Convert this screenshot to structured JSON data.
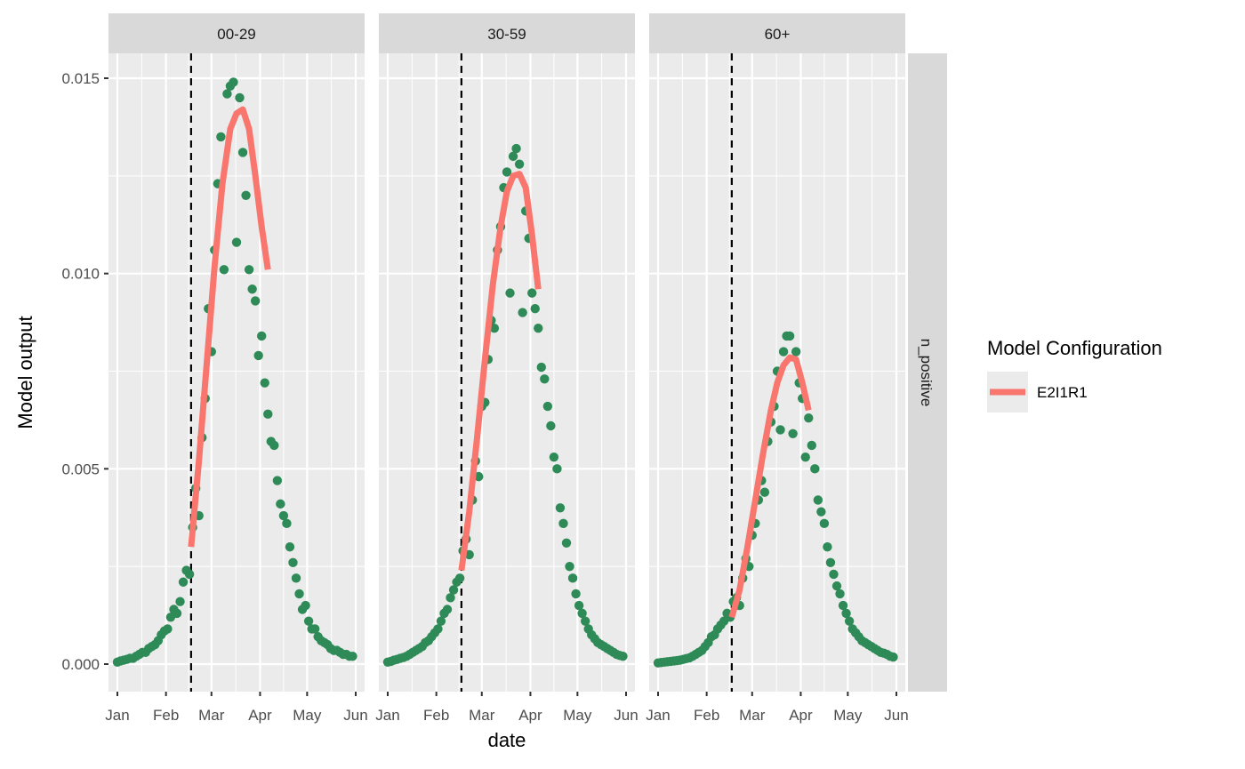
{
  "chart_data": {
    "type": "scatter",
    "xlabel": "date",
    "ylabel": "Model output",
    "ylim": [
      -0.0007,
      0.0157
    ],
    "yticks": [
      "0.000",
      "0.005",
      "0.010",
      "0.015"
    ],
    "ytick_values": [
      0,
      0.005,
      0.01,
      0.015
    ],
    "xticks": [
      "Jan",
      "Feb",
      "Mar",
      "Apr",
      "May",
      "Jun"
    ],
    "xtick_dates": [
      "01-01",
      "02-01",
      "03-01",
      "04-01",
      "05-01",
      "06-01"
    ],
    "grid": true,
    "row_strip": "n_positive",
    "vline_date": "02-17",
    "legend": {
      "title": "Model Configuration",
      "entries": [
        "E2I1R1"
      ],
      "placement": "right"
    },
    "colors": {
      "points": "#2e8b57",
      "fit": "#f8766d",
      "panel_bg": "#ebebeb",
      "strip_bg": "#d9d9d9",
      "vline": "#000000"
    },
    "dates": [
      "01-01",
      "01-03",
      "01-05",
      "01-07",
      "01-09",
      "01-11",
      "01-13",
      "01-15",
      "01-17",
      "01-19",
      "01-21",
      "01-23",
      "01-25",
      "01-27",
      "01-29",
      "01-31",
      "02-02",
      "02-04",
      "02-06",
      "02-08",
      "02-10",
      "02-12",
      "02-14",
      "02-16",
      "02-18",
      "02-20",
      "02-22",
      "02-24",
      "02-26",
      "02-28",
      "03-01",
      "03-03",
      "03-05",
      "03-07",
      "03-09",
      "03-11",
      "03-13",
      "03-15",
      "03-17",
      "03-19",
      "03-21",
      "03-23",
      "03-25",
      "03-27",
      "03-29",
      "03-31",
      "04-02",
      "04-04",
      "04-06",
      "04-08",
      "04-10",
      "04-12",
      "04-14",
      "04-16",
      "04-18",
      "04-20",
      "04-22",
      "04-24",
      "04-26",
      "04-28",
      "04-30",
      "05-02",
      "05-04",
      "05-06",
      "05-08",
      "05-10",
      "05-12",
      "05-14",
      "05-16",
      "05-18",
      "05-20",
      "05-22",
      "05-24",
      "05-26",
      "05-28",
      "05-30"
    ],
    "fit_dates": [
      "02-17",
      "02-22",
      "02-27",
      "03-03",
      "03-08",
      "03-13",
      "03-17",
      "03-21",
      "03-25",
      "03-29",
      "04-02",
      "04-06"
    ],
    "panels": [
      {
        "label": "00-29",
        "points": [
          5e-05,
          8e-05,
          0.0001,
          0.00012,
          0.00015,
          0.00015,
          0.0002,
          0.00025,
          0.0003,
          0.0003,
          0.0004,
          0.00045,
          0.0005,
          0.0006,
          0.00075,
          0.00085,
          0.0009,
          0.0012,
          0.0014,
          0.0013,
          0.0016,
          0.0021,
          0.0024,
          0.0023,
          0.0035,
          0.0045,
          0.0038,
          0.0058,
          0.0068,
          0.0091,
          0.008,
          0.0106,
          0.0123,
          0.0135,
          0.0101,
          0.0146,
          0.0148,
          0.0149,
          0.0108,
          0.0145,
          0.0131,
          0.012,
          0.0101,
          0.0096,
          0.0093,
          0.0079,
          0.0084,
          0.0072,
          0.0064,
          0.0057,
          0.0056,
          0.0047,
          0.0041,
          0.0038,
          0.0036,
          0.003,
          0.0026,
          0.0022,
          0.0018,
          0.0014,
          0.0015,
          0.0011,
          0.0009,
          0.0009,
          0.0007,
          0.0006,
          0.00055,
          0.0005,
          0.0004,
          0.00035,
          0.00035,
          0.0003,
          0.00025,
          0.00025,
          0.0002,
          0.0002
        ],
        "fit": [
          0.003,
          0.0052,
          0.0077,
          0.0102,
          0.0123,
          0.0137,
          0.0141,
          0.0142,
          0.0137,
          0.0125,
          0.0112,
          0.0101
        ]
      },
      {
        "label": "30-59",
        "points": [
          5e-05,
          7e-05,
          0.0001,
          0.00012,
          0.00015,
          0.00017,
          0.0002,
          0.00025,
          0.0003,
          0.00035,
          0.0004,
          0.00045,
          0.00055,
          0.0006,
          0.0007,
          0.0008,
          0.0009,
          0.0011,
          0.0013,
          0.0014,
          0.0017,
          0.0019,
          0.0021,
          0.0022,
          0.0029,
          0.0032,
          0.0028,
          0.0042,
          0.0052,
          0.0048,
          0.0066,
          0.0067,
          0.0078,
          0.0088,
          0.0086,
          0.0106,
          0.0112,
          0.0122,
          0.0126,
          0.0095,
          0.013,
          0.0132,
          0.0128,
          0.009,
          0.0116,
          0.0109,
          0.0095,
          0.0091,
          0.0086,
          0.0076,
          0.0073,
          0.0066,
          0.0061,
          0.0053,
          0.005,
          0.004,
          0.0036,
          0.0031,
          0.0025,
          0.0022,
          0.0018,
          0.0015,
          0.0013,
          0.0011,
          0.0009,
          0.00075,
          0.00065,
          0.00055,
          0.0005,
          0.00045,
          0.0004,
          0.00035,
          0.0003,
          0.00025,
          0.00022,
          0.0002
        ],
        "fit": [
          0.0024,
          0.0039,
          0.0058,
          0.0078,
          0.0097,
          0.0112,
          0.0121,
          0.0125,
          0.01255,
          0.0122,
          0.011,
          0.0096
        ]
      },
      {
        "label": "60+",
        "points": [
          3e-05,
          4e-05,
          5e-05,
          6e-05,
          7e-05,
          8e-05,
          9e-05,
          0.0001,
          0.00012,
          0.00014,
          0.00016,
          0.0002,
          0.00025,
          0.0003,
          0.00035,
          0.00045,
          0.00055,
          0.0007,
          0.00075,
          0.0009,
          0.001,
          0.0011,
          0.0013,
          0.0012,
          0.0016,
          0.0017,
          0.0015,
          0.0022,
          0.0027,
          0.0025,
          0.0033,
          0.0036,
          0.0042,
          0.0047,
          0.0044,
          0.0057,
          0.0062,
          0.0066,
          0.0075,
          0.006,
          0.008,
          0.0084,
          0.0084,
          0.0059,
          0.008,
          0.0072,
          0.0068,
          0.0053,
          0.0063,
          0.0056,
          0.005,
          0.0042,
          0.0039,
          0.0036,
          0.003,
          0.0026,
          0.0023,
          0.002,
          0.0018,
          0.0015,
          0.0013,
          0.0011,
          0.0009,
          0.0008,
          0.0007,
          0.0006,
          0.00055,
          0.0005,
          0.00045,
          0.0004,
          0.00035,
          0.0003,
          0.00028,
          0.00025,
          0.0002,
          0.00018
        ],
        "fit": [
          0.0012,
          0.0019,
          0.003,
          0.0042,
          0.0054,
          0.0065,
          0.0072,
          0.00765,
          0.00785,
          0.0078,
          0.0072,
          0.0065
        ]
      }
    ]
  }
}
